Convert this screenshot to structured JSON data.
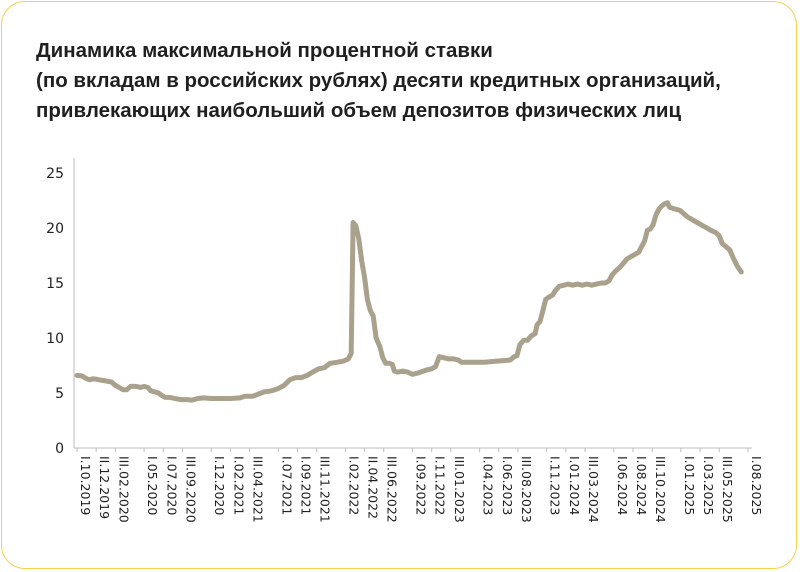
{
  "title": {
    "line1": "Динамика максимальной процентной ставки",
    "line2": "(по вкладам в российских рублях) десяти кредитных организаций,",
    "line3": "привлекающих наибольший объем депозитов физических лиц"
  },
  "colors": {
    "line": "#aaa18c",
    "axis": "#bdbdbd",
    "border": "#f5d24a",
    "text": "#1f1f1f"
  },
  "chart_data": {
    "type": "line",
    "ylim": [
      0,
      25
    ],
    "yticks": [
      0,
      5,
      10,
      15,
      20,
      25
    ],
    "xlim": [
      0,
      70
    ],
    "grid": false,
    "legend": "none",
    "x_tick_labels": [
      {
        "t": 0,
        "label": "I.10.2019"
      },
      {
        "t": 2,
        "label": "II.12.2019"
      },
      {
        "t": 4,
        "label": "III.02.2020"
      },
      {
        "t": 7,
        "label": "I.05.2020"
      },
      {
        "t": 9,
        "label": "I.07.2020"
      },
      {
        "t": 11,
        "label": "III.09.2020"
      },
      {
        "t": 14,
        "label": "I.12.2020"
      },
      {
        "t": 16,
        "label": "I.02.2021"
      },
      {
        "t": 18,
        "label": "III.04.2021"
      },
      {
        "t": 21,
        "label": "I.07.2021"
      },
      {
        "t": 23,
        "label": "I.09.2021"
      },
      {
        "t": 25,
        "label": "III.11.2021"
      },
      {
        "t": 28,
        "label": "I.02.2022"
      },
      {
        "t": 30,
        "label": "II.04.2022"
      },
      {
        "t": 32,
        "label": "III.06.2022"
      },
      {
        "t": 35,
        "label": "I.09.2022"
      },
      {
        "t": 37,
        "label": "I.11.2022"
      },
      {
        "t": 39,
        "label": "III.01.2023"
      },
      {
        "t": 42,
        "label": "I.04.2023"
      },
      {
        "t": 44,
        "label": "I.06.2023"
      },
      {
        "t": 46,
        "label": "III.08.2023"
      },
      {
        "t": 49,
        "label": "I.11.2023"
      },
      {
        "t": 51,
        "label": "I.01.2024"
      },
      {
        "t": 53,
        "label": "III.03.2024"
      },
      {
        "t": 56,
        "label": "I.06.2024"
      },
      {
        "t": 58,
        "label": "I.08.2024"
      },
      {
        "t": 60,
        "label": "III.10.2024"
      },
      {
        "t": 63,
        "label": "I.01.2025"
      },
      {
        "t": 65,
        "label": "I.03.2025"
      },
      {
        "t": 67,
        "label": "III.05.2025"
      },
      {
        "t": 70,
        "label": "I.08.2025"
      }
    ],
    "series": [
      {
        "points": [
          [
            0,
            6.6
          ],
          [
            0.5,
            6.55
          ],
          [
            1,
            6.3
          ],
          [
            1.3,
            6.2
          ],
          [
            1.7,
            6.3
          ],
          [
            2.3,
            6.2
          ],
          [
            3,
            6.1
          ],
          [
            3.6,
            6.0
          ],
          [
            4,
            5.7
          ],
          [
            4.4,
            5.5
          ],
          [
            4.8,
            5.3
          ],
          [
            5.2,
            5.3
          ],
          [
            5.6,
            5.6
          ],
          [
            6.2,
            5.6
          ],
          [
            6.6,
            5.5
          ],
          [
            7,
            5.6
          ],
          [
            7.4,
            5.5
          ],
          [
            7.7,
            5.2
          ],
          [
            8.1,
            5.1
          ],
          [
            8.5,
            5.0
          ],
          [
            8.8,
            4.8
          ],
          [
            9.2,
            4.6
          ],
          [
            9.7,
            4.6
          ],
          [
            10.2,
            4.5
          ],
          [
            10.8,
            4.4
          ],
          [
            11.5,
            4.4
          ],
          [
            12,
            4.35
          ],
          [
            12.6,
            4.5
          ],
          [
            13.2,
            4.55
          ],
          [
            14,
            4.5
          ],
          [
            15,
            4.5
          ],
          [
            16,
            4.5
          ],
          [
            17,
            4.55
          ],
          [
            17.5,
            4.7
          ],
          [
            18.3,
            4.7
          ],
          [
            18.8,
            4.85
          ],
          [
            19.5,
            5.1
          ],
          [
            20.3,
            5.2
          ],
          [
            21,
            5.4
          ],
          [
            21.6,
            5.7
          ],
          [
            22.2,
            6.2
          ],
          [
            22.8,
            6.4
          ],
          [
            23.4,
            6.4
          ],
          [
            24,
            6.6
          ],
          [
            24.6,
            6.9
          ],
          [
            25.2,
            7.2
          ],
          [
            25.8,
            7.3
          ],
          [
            26.4,
            7.7
          ],
          [
            27.2,
            7.8
          ],
          [
            27.8,
            7.9
          ],
          [
            28.3,
            8.1
          ],
          [
            28.6,
            8.6
          ],
          [
            28.8,
            20.5
          ],
          [
            29.1,
            20.2
          ],
          [
            29.4,
            19.0
          ],
          [
            29.7,
            17.0
          ],
          [
            30,
            15.5
          ],
          [
            30.3,
            13.5
          ],
          [
            30.6,
            12.5
          ],
          [
            30.9,
            12.0
          ],
          [
            31.2,
            10.0
          ],
          [
            31.6,
            9.2
          ],
          [
            31.9,
            8.2
          ],
          [
            32.2,
            7.7
          ],
          [
            32.6,
            7.7
          ],
          [
            32.9,
            7.6
          ],
          [
            33.1,
            7.0
          ],
          [
            33.5,
            6.9
          ],
          [
            34,
            7.0
          ],
          [
            34.5,
            6.9
          ],
          [
            35,
            6.7
          ],
          [
            35.5,
            6.8
          ],
          [
            36,
            6.95
          ],
          [
            36.5,
            7.1
          ],
          [
            37,
            7.2
          ],
          [
            37.4,
            7.4
          ],
          [
            37.8,
            8.3
          ],
          [
            38.3,
            8.2
          ],
          [
            38.8,
            8.1
          ],
          [
            39.3,
            8.1
          ],
          [
            39.8,
            8.0
          ],
          [
            40.1,
            7.8
          ],
          [
            40.7,
            7.8
          ],
          [
            41.5,
            7.8
          ],
          [
            42.5,
            7.8
          ],
          [
            43.2,
            7.85
          ],
          [
            43.8,
            7.9
          ],
          [
            44.5,
            7.95
          ],
          [
            45.2,
            8.0
          ],
          [
            45.6,
            8.3
          ],
          [
            45.9,
            8.4
          ],
          [
            46.2,
            9.4
          ],
          [
            46.6,
            9.8
          ],
          [
            47,
            9.8
          ],
          [
            47.4,
            10.2
          ],
          [
            47.8,
            10.4
          ],
          [
            48,
            11.2
          ],
          [
            48.3,
            11.5
          ],
          [
            48.6,
            12.5
          ],
          [
            48.9,
            13.5
          ],
          [
            49.2,
            13.7
          ],
          [
            49.6,
            13.9
          ],
          [
            49.9,
            14.3
          ],
          [
            50.3,
            14.7
          ],
          [
            50.8,
            14.8
          ],
          [
            51.2,
            14.9
          ],
          [
            51.7,
            14.8
          ],
          [
            52.2,
            14.9
          ],
          [
            52.7,
            14.8
          ],
          [
            53.2,
            14.9
          ],
          [
            53.7,
            14.8
          ],
          [
            54.2,
            14.9
          ],
          [
            54.7,
            15.0
          ],
          [
            55.1,
            15.0
          ],
          [
            55.5,
            15.2
          ],
          [
            55.8,
            15.7
          ],
          [
            56.2,
            16.1
          ],
          [
            56.6,
            16.4
          ],
          [
            57,
            16.8
          ],
          [
            57.4,
            17.2
          ],
          [
            57.8,
            17.4
          ],
          [
            58.2,
            17.6
          ],
          [
            58.6,
            17.8
          ],
          [
            58.9,
            18.3
          ],
          [
            59.2,
            18.8
          ],
          [
            59.5,
            19.8
          ],
          [
            59.8,
            19.9
          ],
          [
            60.1,
            20.3
          ],
          [
            60.4,
            21.2
          ],
          [
            60.7,
            21.7
          ],
          [
            61,
            22.0
          ],
          [
            61.3,
            22.2
          ],
          [
            61.6,
            22.3
          ],
          [
            61.8,
            21.9
          ],
          [
            62.1,
            21.8
          ],
          [
            62.5,
            21.7
          ],
          [
            62.9,
            21.6
          ],
          [
            63.3,
            21.3
          ],
          [
            63.7,
            21.0
          ],
          [
            64.1,
            20.8
          ],
          [
            64.5,
            20.6
          ],
          [
            64.9,
            20.4
          ],
          [
            65.3,
            20.2
          ],
          [
            65.7,
            20.0
          ],
          [
            66.1,
            19.8
          ],
          [
            66.6,
            19.6
          ],
          [
            67,
            19.3
          ],
          [
            67.3,
            18.6
          ],
          [
            67.7,
            18.3
          ],
          [
            68.1,
            18.0
          ],
          [
            68.5,
            17.2
          ],
          [
            68.9,
            16.5
          ],
          [
            69.3,
            16.0
          ]
        ]
      }
    ]
  }
}
